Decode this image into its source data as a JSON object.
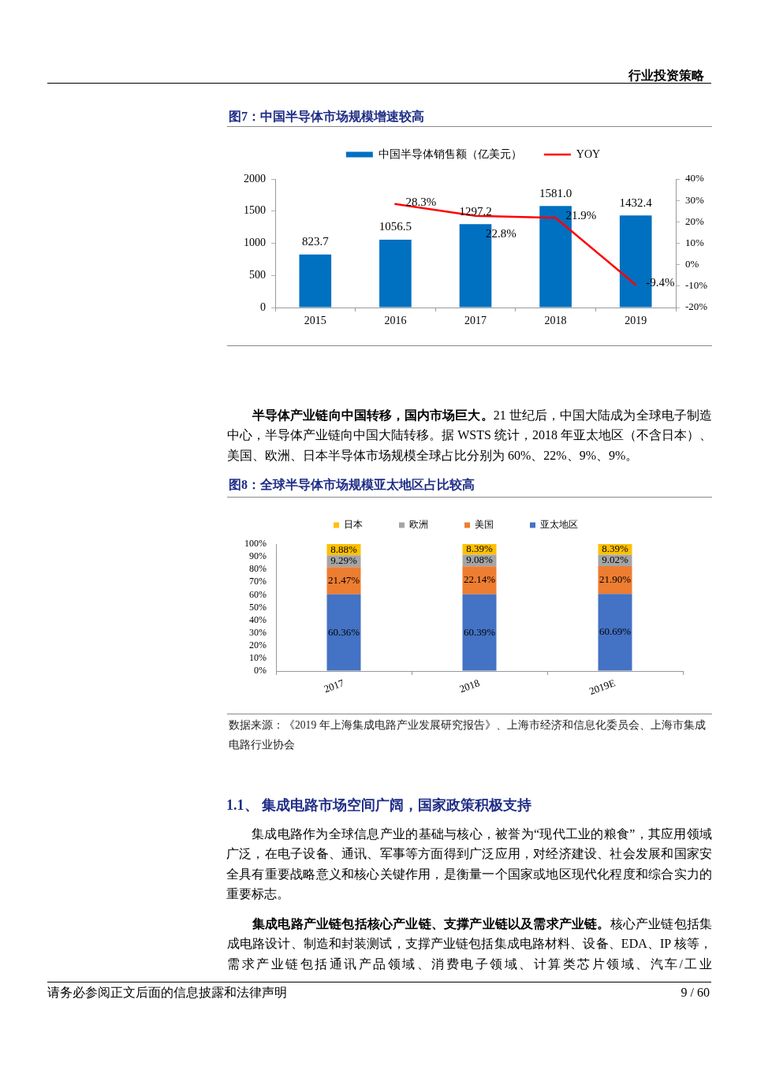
{
  "chart_data": [
    {
      "type": "other",
      "annotations": [
        "行业投资策略"
      ]
    },
    {
      "type": "bar",
      "title": "图7：中国半导体市场规模增速较高",
      "categories": [
        "2015",
        "2016",
        "2017",
        "2018",
        "2019"
      ],
      "series": [
        {
          "name": "中国半导体销售额（亿美元）",
          "color": "#0070c0",
          "values": [
            823.7,
            1056.5,
            1297.2,
            1581.0,
            1432.4
          ],
          "value_labels": [
            "823.7",
            "1056.5",
            "1297.2",
            "1581.0",
            "1432.4"
          ]
        },
        {
          "name": "YOY",
          "type": "line",
          "axis": "y2",
          "color": "#ff0000",
          "values": [
            null,
            28.3,
            22.8,
            21.9,
            -9.4
          ],
          "value_labels": [
            null,
            "28.3%",
            "22.8%",
            "21.9%",
            "-9.4%"
          ]
        }
      ],
      "ylim": [
        0,
        2000
      ],
      "yticks": [
        0,
        500,
        1000,
        1500,
        2000
      ],
      "y2lim": [
        -20,
        40
      ],
      "y2ticks": [
        {
          "value": -20,
          "label": "-20%"
        },
        {
          "value": -10,
          "label": "-10%"
        },
        {
          "value": 0,
          "label": "0%"
        },
        {
          "value": 10,
          "label": "10%"
        },
        {
          "value": 20,
          "label": "20%"
        },
        {
          "value": 30,
          "label": "30%"
        },
        {
          "value": 40,
          "label": "40%"
        }
      ],
      "legend": "top",
      "marker": "none",
      "grid": false
    },
    {
      "type": "other",
      "title": "半导体产业链向中国转移，国内市场巨大。",
      "subtitle": "21 世纪后，中国大陆成为全球电子制造中心，半导体产业链向中国大陆转移。据 WSTS 统计，2018 年亚太地区（不含日本）、美国、欧洲、日本半导体市场规模全球占比分别为 60%、22%、9%、9%。"
    },
    {
      "type": "bar",
      "stacked": true,
      "title": "图8：全球半导体市场规模亚太地区占比较高",
      "categories": [
        "2017",
        "2018",
        "2019E"
      ],
      "series": [
        {
          "name": "亚太地区",
          "color": "#4472c4",
          "values": [
            60.36,
            60.39,
            60.69
          ],
          "value_labels": [
            "60.36%",
            "60.39%",
            "60.69%"
          ]
        },
        {
          "name": "美国",
          "color": "#ed7d31",
          "values": [
            21.47,
            22.14,
            21.9
          ],
          "value_labels": [
            "21.47%",
            "22.14%",
            "21.90%"
          ]
        },
        {
          "name": "欧洲",
          "color": "#a5a5a5",
          "values": [
            9.29,
            9.08,
            9.02
          ],
          "value_labels": [
            "9.29%",
            "9.08%",
            "9.02%"
          ]
        },
        {
          "name": "日本",
          "color": "#ffc000",
          "values": [
            8.88,
            8.39,
            8.39
          ],
          "value_labels": [
            "8.88%",
            "8.39%",
            "8.39%"
          ]
        }
      ],
      "ylim": [
        0,
        100
      ],
      "yticks": [
        {
          "value": 0,
          "label": "0%"
        },
        {
          "value": 10,
          "label": "10%"
        },
        {
          "value": 20,
          "label": "20%"
        },
        {
          "value": 30,
          "label": "30%"
        },
        {
          "value": 40,
          "label": "40%"
        },
        {
          "value": 50,
          "label": "50%"
        },
        {
          "value": 60,
          "label": "60%"
        },
        {
          "value": 70,
          "label": "70%"
        },
        {
          "value": 80,
          "label": "80%"
        },
        {
          "value": 90,
          "label": "90%"
        },
        {
          "value": 100,
          "label": "100%"
        }
      ],
      "legend": "top",
      "grid": false,
      "annotations": [
        "数据来源：《2019 年上海集成电路产业发展研究报告》、上海市经济和信息化委员会、上海市集成电路行业协会"
      ]
    },
    {
      "type": "other",
      "title": "1.1、 集成电路市场空间广阔，国家政策积极支持",
      "annotations": [
        "集成电路作为全球信息产业的基础与核心，被誉为“现代工业的粮食”，其应用领域广泛，在电子设备、通讯、军事等方面得到广泛应用，对经济建设、社会发展和国家安全具有重要战略意义和核心关键作用，是衡量一个国家或地区现代化程度和综合实力的重要标志。"
      ]
    },
    {
      "type": "other",
      "title": "集成电路产业链包括核心产业链、支撑产业链以及需求产业链。",
      "subtitle": "核心产业链包括集成电路设计、制造和封装测试，支撑产业链包括集成电路材料、设备、EDA、IP 核等，需求产业链包括通讯产品领域、消费电子领域、计算类芯片领域、汽车/工业"
    },
    {
      "type": "other",
      "annotations": [
        "请务必参阅正文后面的信息披露和法律声明",
        "9 / 60"
      ]
    }
  ]
}
